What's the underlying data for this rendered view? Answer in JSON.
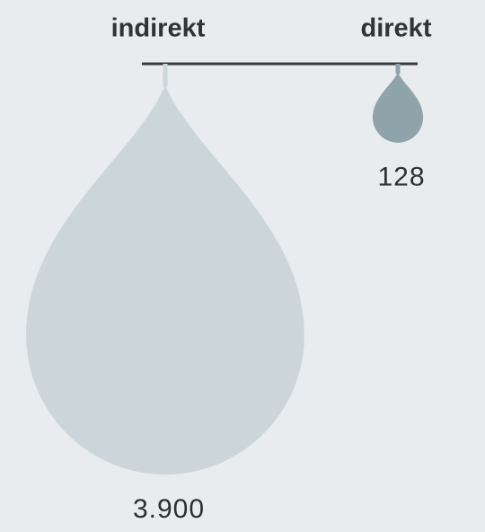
{
  "chart_data": {
    "type": "drop",
    "categories": [
      "indirekt",
      "direkt"
    ],
    "values": [
      3900,
      128
    ],
    "value_labels": [
      "3.900",
      "128"
    ],
    "colors": [
      "#cbd5da",
      "#8fa3ab"
    ]
  }
}
